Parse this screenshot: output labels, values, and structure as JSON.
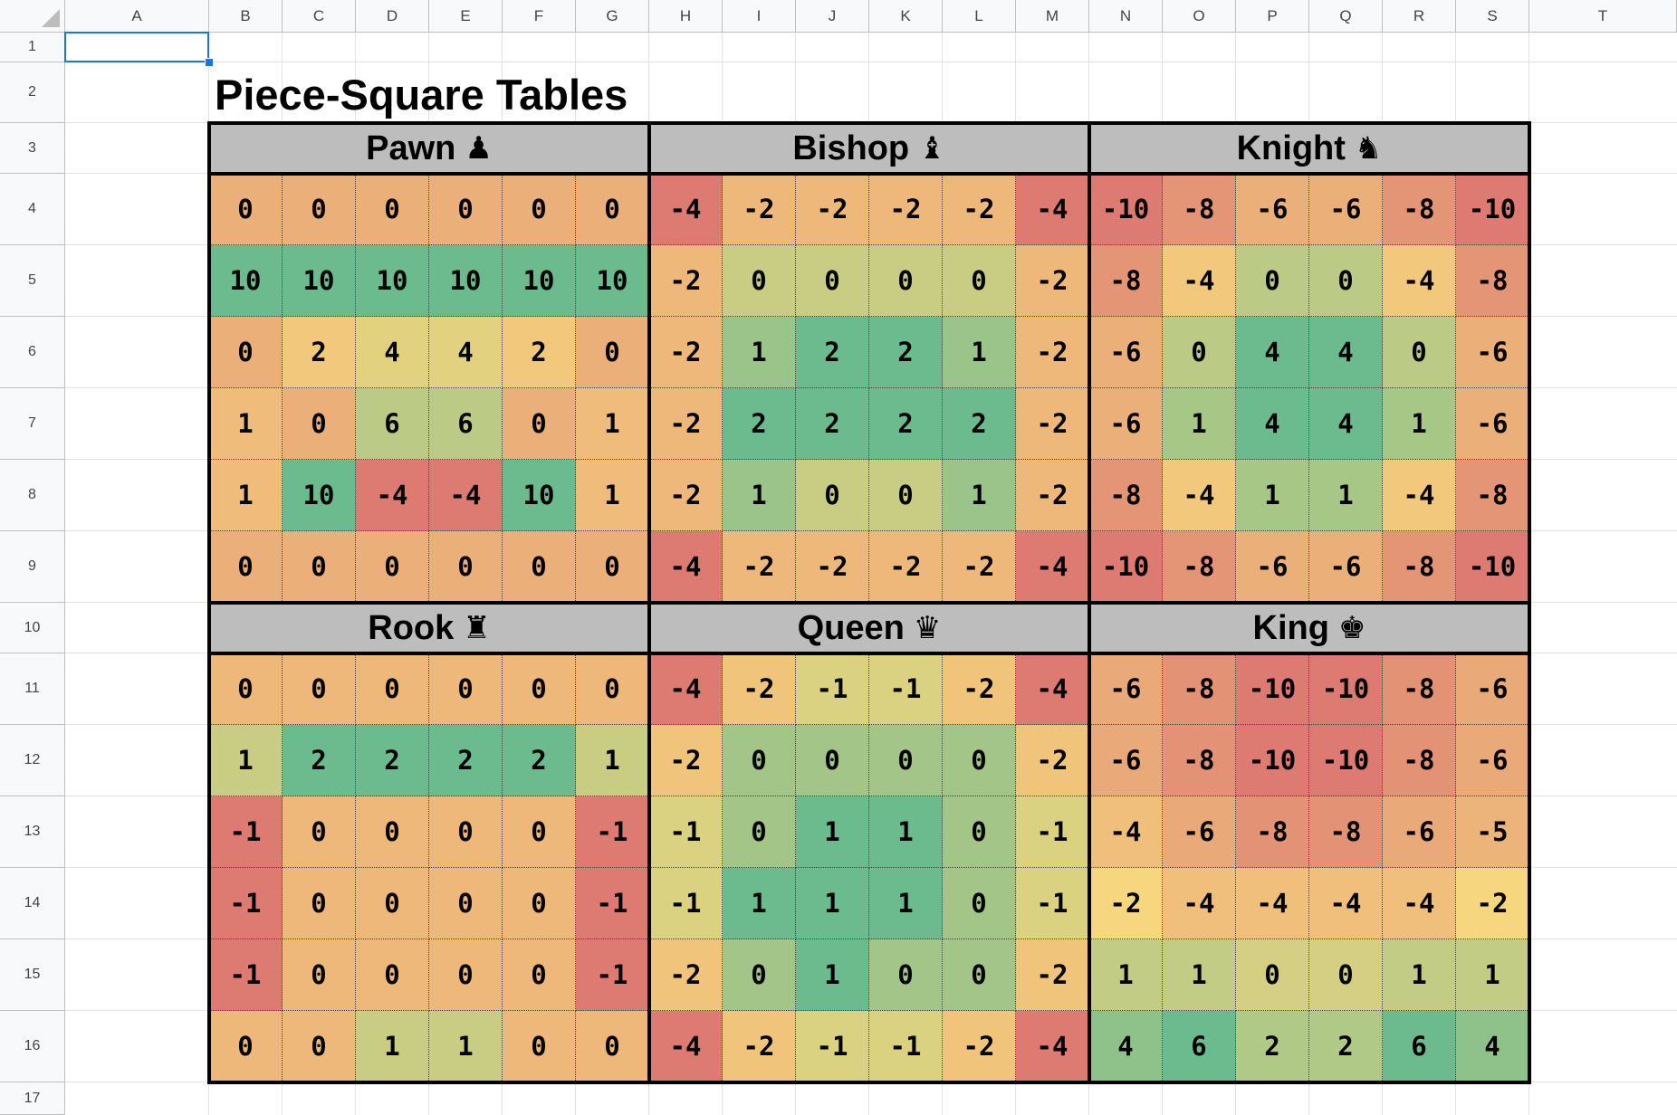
{
  "columns": [
    "A",
    "B",
    "C",
    "D",
    "E",
    "F",
    "G",
    "H",
    "I",
    "J",
    "K",
    "L",
    "M",
    "N",
    "O",
    "P",
    "Q",
    "R",
    "S",
    "T"
  ],
  "rows": [
    "1",
    "2",
    "3",
    "4",
    "5",
    "6",
    "7",
    "8",
    "9",
    "10",
    "11",
    "12",
    "13",
    "14",
    "15",
    "16",
    "17"
  ],
  "title": "Piece-Square Tables",
  "tables": [
    {
      "label": "Pawn",
      "glyph": "♟",
      "icon": "pawn-icon",
      "values": [
        [
          0,
          0,
          0,
          0,
          0,
          0
        ],
        [
          10,
          10,
          10,
          10,
          10,
          10
        ],
        [
          0,
          2,
          4,
          4,
          2,
          0
        ],
        [
          1,
          0,
          6,
          6,
          0,
          1
        ],
        [
          1,
          10,
          -4,
          -4,
          10,
          1
        ],
        [
          0,
          0,
          0,
          0,
          0,
          0
        ]
      ]
    },
    {
      "label": "Bishop",
      "glyph": "♝",
      "icon": "bishop-icon",
      "values": [
        [
          -4,
          -2,
          -2,
          -2,
          -2,
          -4
        ],
        [
          -2,
          0,
          0,
          0,
          0,
          -2
        ],
        [
          -2,
          1,
          2,
          2,
          1,
          -2
        ],
        [
          -2,
          2,
          2,
          2,
          2,
          -2
        ],
        [
          -2,
          1,
          0,
          0,
          1,
          -2
        ],
        [
          -4,
          -2,
          -2,
          -2,
          -2,
          -4
        ]
      ]
    },
    {
      "label": "Knight",
      "glyph": "♞",
      "icon": "knight-icon",
      "values": [
        [
          -10,
          -8,
          -6,
          -6,
          -8,
          -10
        ],
        [
          -8,
          -4,
          0,
          0,
          -4,
          -8
        ],
        [
          -6,
          0,
          4,
          4,
          0,
          -6
        ],
        [
          -6,
          1,
          4,
          4,
          1,
          -6
        ],
        [
          -8,
          -4,
          1,
          1,
          -4,
          -8
        ],
        [
          -10,
          -8,
          -6,
          -6,
          -8,
          -10
        ]
      ]
    },
    {
      "label": "Rook",
      "glyph": "♜",
      "icon": "rook-icon",
      "values": [
        [
          0,
          0,
          0,
          0,
          0,
          0
        ],
        [
          1,
          2,
          2,
          2,
          2,
          1
        ],
        [
          -1,
          0,
          0,
          0,
          0,
          -1
        ],
        [
          -1,
          0,
          0,
          0,
          0,
          -1
        ],
        [
          -1,
          0,
          0,
          0,
          0,
          -1
        ],
        [
          0,
          0,
          1,
          1,
          0,
          0
        ]
      ]
    },
    {
      "label": "Queen",
      "glyph": "♛",
      "icon": "queen-icon",
      "values": [
        [
          -4,
          -2,
          -1,
          -1,
          -2,
          -4
        ],
        [
          -2,
          0,
          0,
          0,
          0,
          -2
        ],
        [
          -1,
          0,
          1,
          1,
          0,
          -1
        ],
        [
          -1,
          1,
          1,
          1,
          0,
          -1
        ],
        [
          -2,
          0,
          1,
          0,
          0,
          -2
        ],
        [
          -4,
          -2,
          -1,
          -1,
          -2,
          -4
        ]
      ]
    },
    {
      "label": "King",
      "glyph": "♚",
      "icon": "king-icon",
      "values": [
        [
          -6,
          -8,
          -10,
          -10,
          -8,
          -6
        ],
        [
          -6,
          -8,
          -10,
          -10,
          -8,
          -6
        ],
        [
          -4,
          -6,
          -8,
          -8,
          -6,
          -5
        ],
        [
          -2,
          -4,
          -4,
          -4,
          -4,
          -2
        ],
        [
          1,
          1,
          0,
          0,
          1,
          1
        ],
        [
          4,
          6,
          2,
          2,
          6,
          4
        ]
      ]
    }
  ],
  "colors": {
    "header_fill": "#bdbdbd",
    "selection": "#1a73e8",
    "scale_min": "#dd7b73",
    "scale_mid": "#f6d67e",
    "scale_max": "#6cbb8e"
  }
}
